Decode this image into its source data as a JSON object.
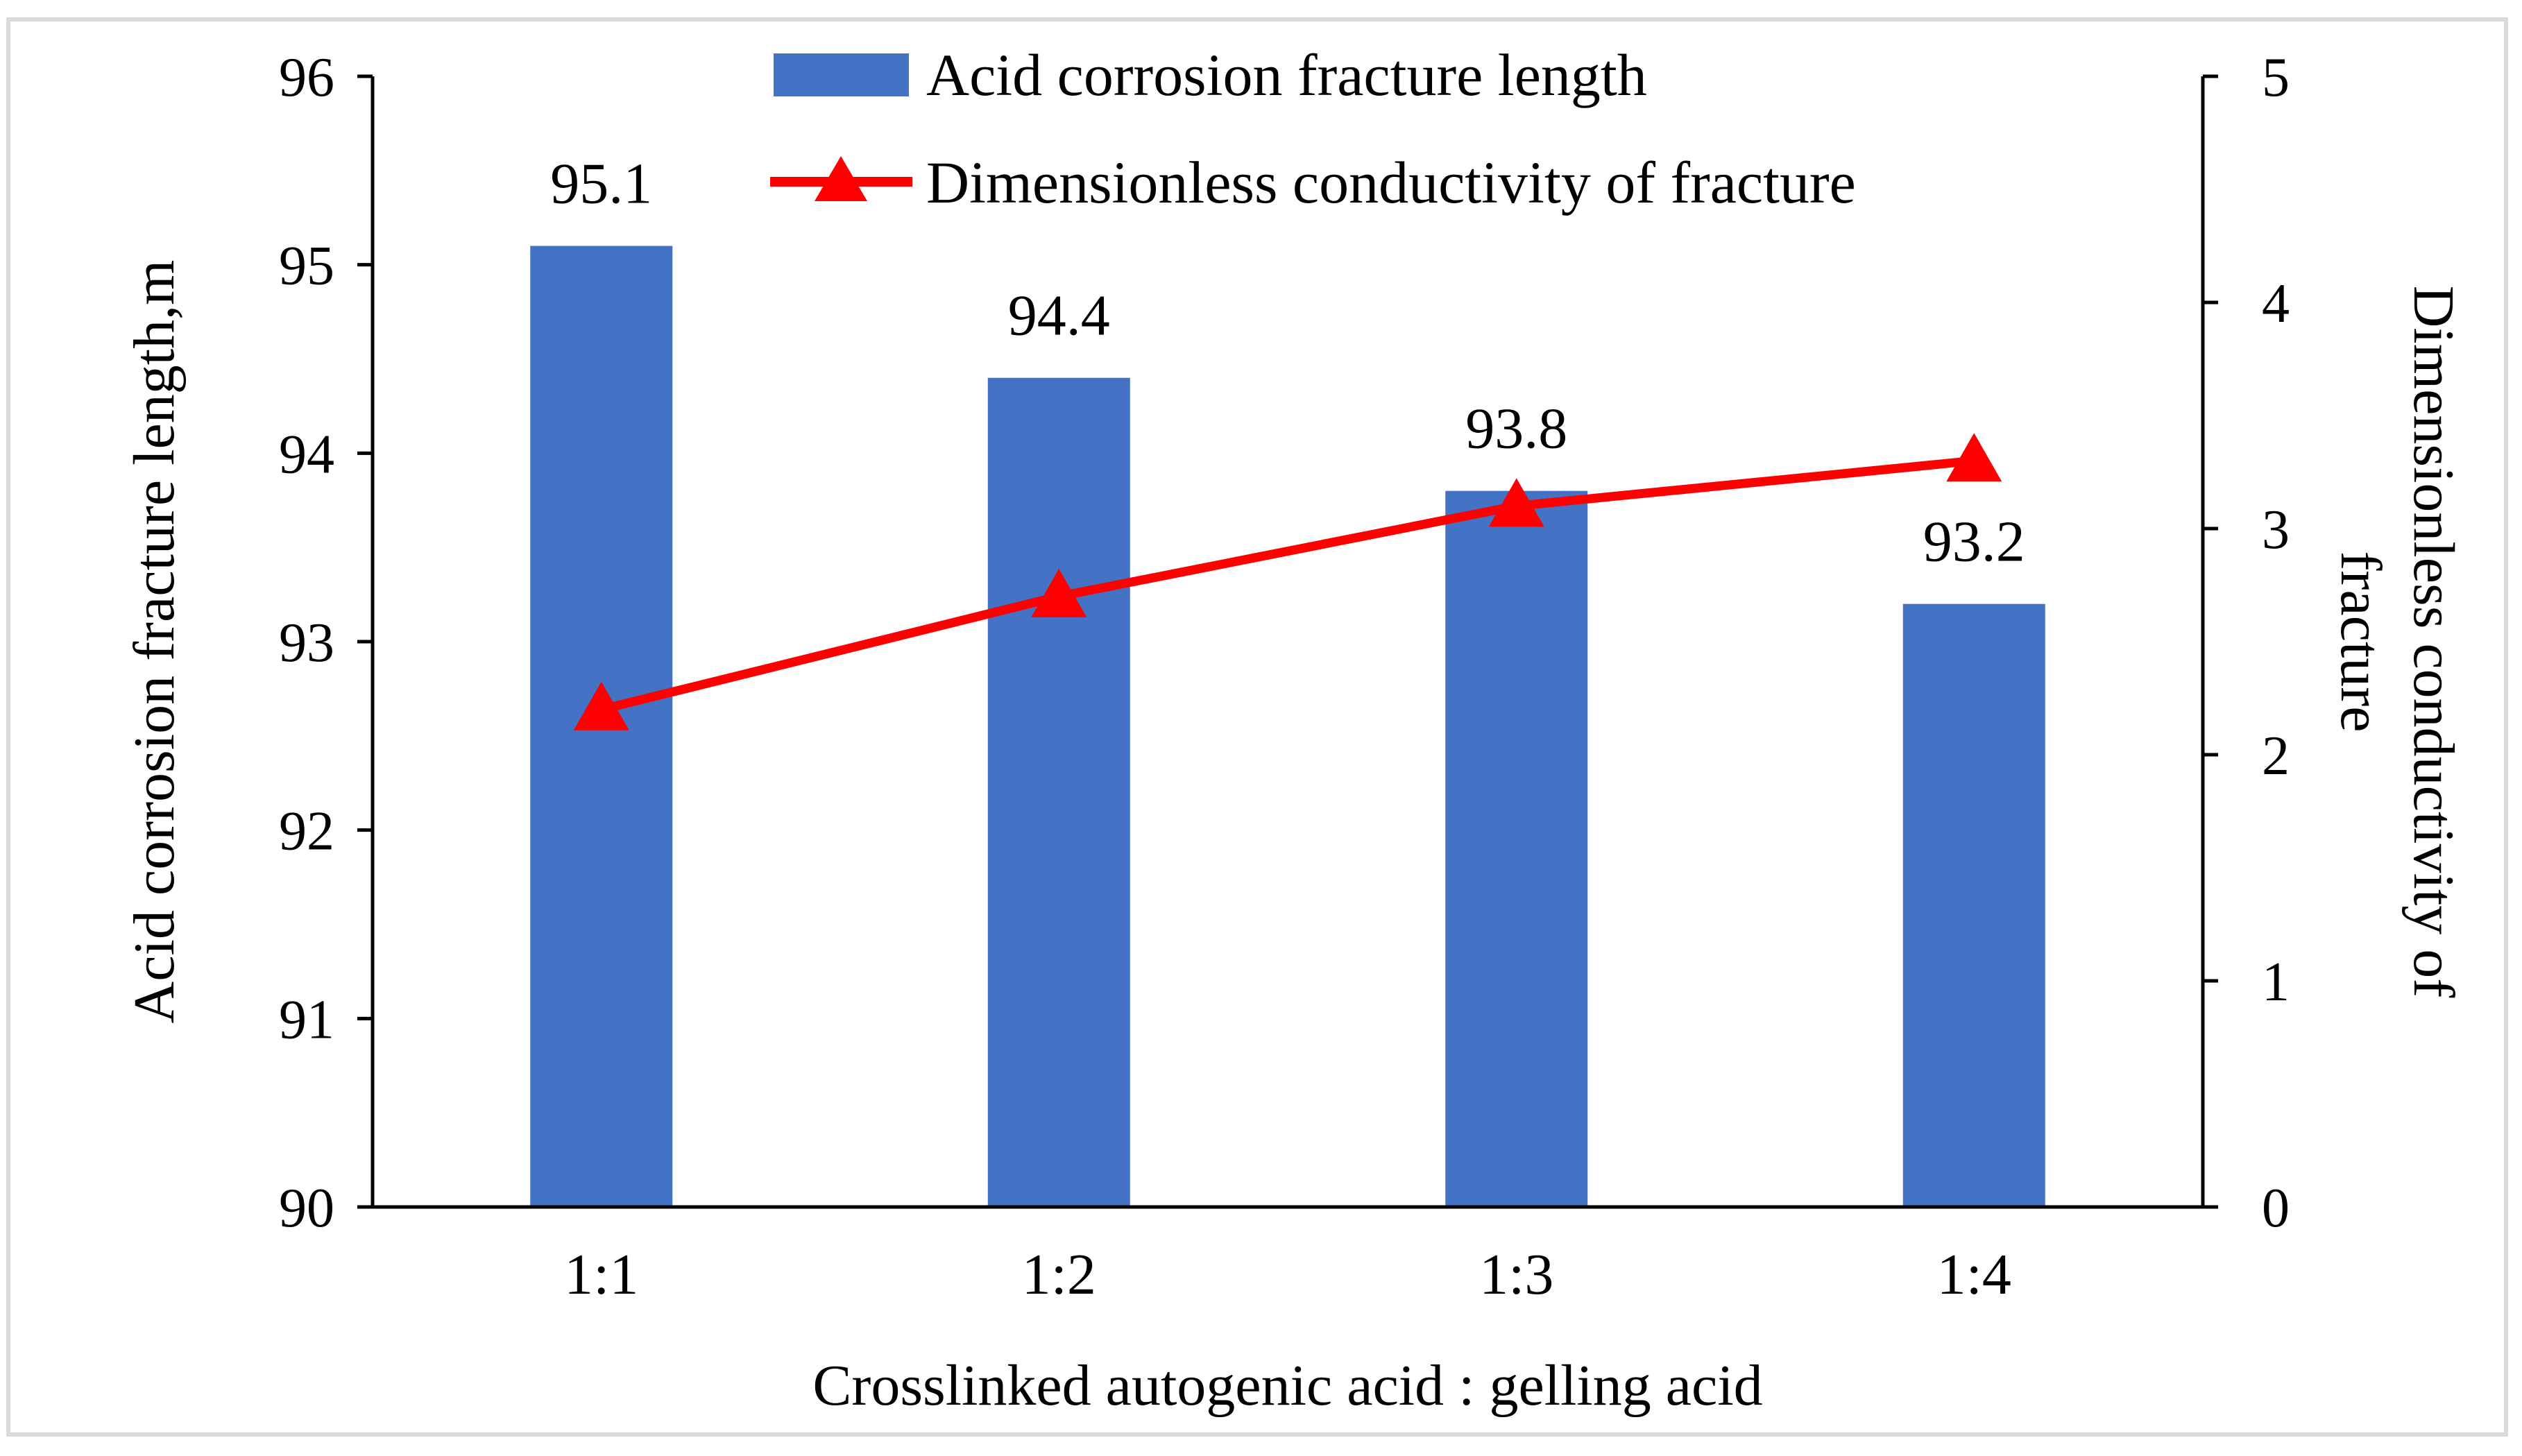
{
  "chart_data": {
    "type": "bar",
    "categories": [
      "1:1",
      "1:2",
      "1:3",
      "1:4"
    ],
    "series": [
      {
        "name": "Acid corrosion fracture length",
        "type": "bar",
        "axis": "left",
        "color": "#4472c4",
        "values": [
          95.1,
          94.4,
          93.8,
          93.2
        ],
        "data_labels": [
          "95.1",
          "94.4",
          "93.8",
          "93.2"
        ]
      },
      {
        "name": "Dimensionless conductivity of fracture",
        "type": "line",
        "marker": "triangle",
        "axis": "right",
        "color": "#ff0000",
        "values": [
          2.2,
          2.7,
          3.1,
          3.3
        ]
      }
    ],
    "xlabel": "Crosslinked autogenic acid : gelling acid",
    "ylabel": "Acid corrosion fracture length,m",
    "y2label_lines": [
      "Dimensionless conductivity of",
      "fracture"
    ],
    "ylim": [
      90,
      96
    ],
    "y_ticks": [
      "90",
      "91",
      "92",
      "93",
      "94",
      "95",
      "96"
    ],
    "y2lim": [
      0,
      5
    ],
    "y2_ticks": [
      "0",
      "1",
      "2",
      "3",
      "4",
      "5"
    ],
    "grid": false,
    "legend_position": "top-center"
  }
}
